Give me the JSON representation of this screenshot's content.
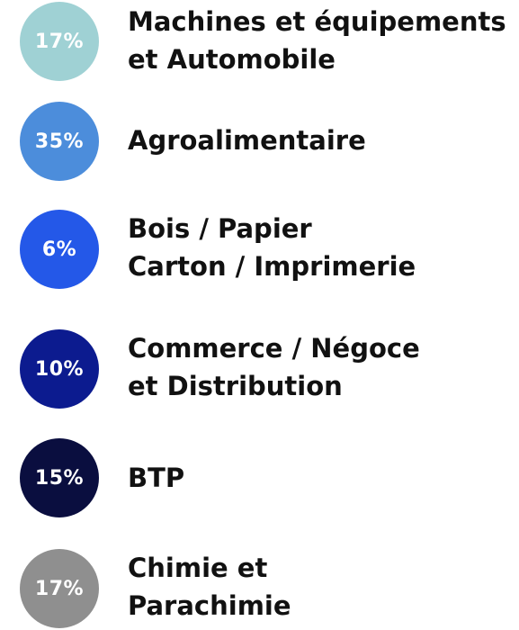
{
  "chart_data": {
    "type": "pie",
    "categories": [
      "Machines et équipements et Automobile",
      "Agroalimentaire",
      "Bois / Papier Carton / Imprimerie",
      "Commerce / Négoce et Distribution",
      "BTP",
      "Chimie et Parachimie"
    ],
    "values": [
      17,
      35,
      6,
      10,
      15,
      17
    ],
    "unit": "%"
  },
  "items": [
    {
      "percent": "17%",
      "line1": "Machines et équipements",
      "line2": "et Automobile",
      "color": "#9fd1d4"
    },
    {
      "percent": "35%",
      "line1": "Agroalimentaire",
      "line2": "",
      "color": "#4c8ddb"
    },
    {
      "percent": "6%",
      "line1": "Bois / Papier",
      "line2": "Carton / Imprimerie",
      "color": "#2458e8"
    },
    {
      "percent": "10%",
      "line1": "Commerce / Négoce",
      "line2": "et Distribution",
      "color": "#0c1b8f"
    },
    {
      "percent": "15%",
      "line1": "BTP",
      "line2": "",
      "color": "#0a0e3f"
    },
    {
      "percent": "17%",
      "line1": "Chimie et",
      "line2": "Parachimie",
      "color": "#8f8f8f"
    }
  ]
}
